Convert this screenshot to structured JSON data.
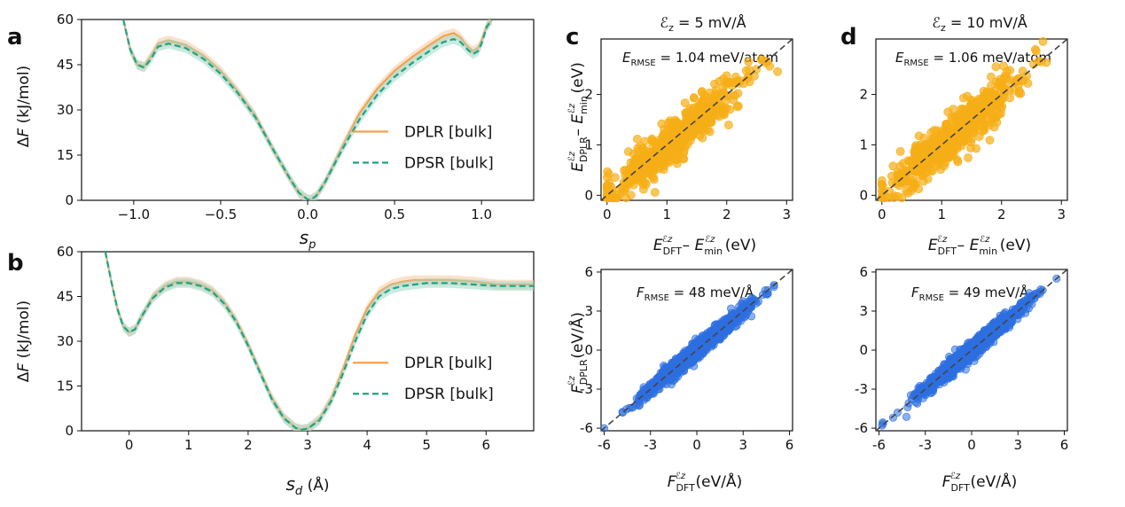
{
  "panel_labels": {
    "a": "a",
    "b": "b",
    "c": "c",
    "d": "d"
  },
  "colors": {
    "dplr": "#f5a04a",
    "dpsr": "#1fa385",
    "dplr_band": "#f7c9a0",
    "dpsr_band": "#9fd8c8",
    "energy": "#f6ae17",
    "force": "#2e6fe0",
    "diag": "#444444"
  },
  "titles": {
    "c": {
      "symbol": "ℰ",
      "sub": "z",
      "rest": " = 5 mV/Å"
    },
    "d": {
      "symbol": "ℰ",
      "sub": "z",
      "rest": " = 10 mV/Å"
    }
  },
  "annotations": {
    "c_energy": {
      "main": "E",
      "sub": "RMSE",
      "rest": " = 1.04 meV/atom"
    },
    "d_energy": {
      "main": "E",
      "sub": "RMSE",
      "rest": " = 1.06 meV/atom"
    },
    "c_force": {
      "main": "F",
      "sub": "RMSE",
      "rest": " = 48 meV/Å"
    },
    "d_force": {
      "main": "F",
      "sub": "RMSE",
      "rest": " = 49 meV/Å"
    }
  },
  "axis_labels": {
    "a_y": {
      "pre": "Δ",
      "italic": "F",
      "post": " (kJ/mol)"
    },
    "a_x": {
      "italic": "s",
      "sub": "p",
      "post": ""
    },
    "b_y": {
      "pre": "Δ",
      "italic": "F",
      "post": " (kJ/mol)"
    },
    "b_x": {
      "italic": "s",
      "sub": "d",
      "post": " (Å)"
    },
    "energy_x": {
      "main": "E",
      "sub": "DFT",
      "sup": "ℰz",
      "mid": " – ",
      "main2": "E",
      "sub2": "min",
      "sup2": "ℰz",
      "unit": " (eV)"
    },
    "energy_y": {
      "main": "E",
      "sub": "DPLR",
      "sup": "ℰz",
      "mid": " – ",
      "main2": "E",
      "sub2": "min",
      "sup2": "ℰz",
      "unit": " (eV)"
    },
    "force_x": {
      "main": "F",
      "sub": "DFT",
      "sup": "ℰz",
      "unit": " (eV/Å)"
    },
    "force_y": {
      "main": "F",
      "sub": "DPLR",
      "sup": "ℰz",
      "unit": " (eV/Å)"
    }
  },
  "chart_data": [
    {
      "id": "a",
      "type": "line",
      "xlabel": "s_p",
      "ylabel": "ΔF (kJ/mol)",
      "xlim": [
        -1.3,
        1.3
      ],
      "ylim": [
        0,
        60
      ],
      "xticks": [
        -1.0,
        -0.5,
        0.0,
        0.5,
        1.0
      ],
      "xtick_labels": [
        "−1.0",
        "−0.5",
        "0.0",
        "0.5",
        "1.0"
      ],
      "yticks": [
        0,
        15,
        30,
        45,
        60
      ],
      "legend_position": "right",
      "series": [
        {
          "name": "DPLR [bulk]",
          "style": "solid",
          "x": [
            -1.06,
            -1.02,
            -0.98,
            -0.94,
            -0.9,
            -0.86,
            -0.8,
            -0.7,
            -0.6,
            -0.5,
            -0.4,
            -0.3,
            -0.2,
            -0.1,
            -0.05,
            0.0,
            0.02,
            0.05,
            0.1,
            0.2,
            0.3,
            0.4,
            0.5,
            0.6,
            0.7,
            0.78,
            0.84,
            0.88,
            0.92,
            0.95,
            0.98,
            1.0,
            1.03,
            1.06
          ],
          "y": [
            60,
            50,
            45,
            44.5,
            48,
            52,
            53,
            51.5,
            48,
            43,
            36,
            28,
            17,
            7,
            2.5,
            0.3,
            0.2,
            1.5,
            6,
            18,
            29,
            37,
            43,
            47.5,
            51.5,
            54.5,
            55.5,
            54,
            51,
            49.5,
            50.5,
            53,
            58,
            60
          ]
        },
        {
          "name": "DPSR [bulk]",
          "style": "dashed",
          "x": [
            -1.06,
            -1.02,
            -0.98,
            -0.94,
            -0.9,
            -0.86,
            -0.8,
            -0.7,
            -0.6,
            -0.5,
            -0.4,
            -0.3,
            -0.2,
            -0.1,
            -0.05,
            0.0,
            0.02,
            0.05,
            0.1,
            0.2,
            0.3,
            0.4,
            0.5,
            0.6,
            0.7,
            0.78,
            0.84,
            0.88,
            0.92,
            0.95,
            0.98,
            1.0,
            1.03,
            1.06
          ],
          "y": [
            60,
            50,
            45,
            44,
            47,
            51,
            52,
            50.5,
            47,
            42,
            35.5,
            27.5,
            17,
            7,
            2.5,
            0.3,
            0.2,
            1.5,
            6,
            17,
            27,
            35,
            41,
            45.5,
            49.5,
            52.5,
            53.5,
            52.5,
            50,
            48.5,
            49.5,
            52,
            57.5,
            60
          ]
        }
      ]
    },
    {
      "id": "b",
      "type": "line",
      "xlabel": "s_d (Å)",
      "ylabel": "ΔF (kJ/mol)",
      "xlim": [
        -0.8,
        6.8
      ],
      "ylim": [
        0,
        60
      ],
      "xticks": [
        0,
        1,
        2,
        3,
        4,
        5,
        6
      ],
      "yticks": [
        0,
        15,
        30,
        45,
        60
      ],
      "legend_position": "right",
      "series": [
        {
          "name": "DPLR [bulk]",
          "style": "solid",
          "x": [
            -0.4,
            -0.3,
            -0.2,
            -0.1,
            0.0,
            0.1,
            0.2,
            0.4,
            0.6,
            0.8,
            1.0,
            1.2,
            1.4,
            1.6,
            1.8,
            2.0,
            2.2,
            2.4,
            2.6,
            2.8,
            2.9,
            3.0,
            3.2,
            3.4,
            3.6,
            3.8,
            4.0,
            4.2,
            4.4,
            4.6,
            4.8,
            5.0,
            5.4,
            5.8,
            6.2,
            6.8
          ],
          "y": [
            60,
            50,
            41,
            35,
            33,
            34,
            38,
            45,
            48.5,
            50,
            50,
            49,
            47,
            43,
            37,
            29,
            20,
            11,
            4.5,
            1.0,
            0.4,
            0.8,
            4,
            11,
            21,
            32,
            41,
            46.5,
            49,
            50,
            50.5,
            50.5,
            50.5,
            50,
            49,
            49
          ]
        },
        {
          "name": "DPSR [bulk]",
          "style": "dashed",
          "x": [
            -0.4,
            -0.3,
            -0.2,
            -0.1,
            0.0,
            0.1,
            0.2,
            0.4,
            0.6,
            0.8,
            1.0,
            1.2,
            1.4,
            1.6,
            1.8,
            2.0,
            2.2,
            2.4,
            2.6,
            2.8,
            2.9,
            3.0,
            3.2,
            3.4,
            3.6,
            3.8,
            4.0,
            4.2,
            4.4,
            4.6,
            4.8,
            5.0,
            5.4,
            5.8,
            6.2,
            6.8
          ],
          "y": [
            60,
            50,
            41,
            35,
            33,
            34,
            38,
            44.5,
            48,
            49.5,
            49.5,
            48.5,
            46.5,
            42.5,
            36.5,
            28.5,
            19.5,
            10.5,
            4.2,
            0.9,
            0.4,
            0.7,
            3.5,
            10,
            19.5,
            30,
            39,
            45,
            47.5,
            48.5,
            49,
            49.5,
            49.5,
            49,
            48.5,
            48.5
          ]
        }
      ]
    },
    {
      "id": "c_energy",
      "type": "scatter",
      "title": "ℰz = 5 mV/Å",
      "xlabel": "E_DFT^ℰz – E_min^ℰz (eV)",
      "ylabel": "E_DPLR^ℰz – E_min^ℰz (eV)",
      "xlim": [
        -0.1,
        3.1
      ],
      "ylim": [
        -0.1,
        3.1
      ],
      "xticks": [
        0,
        1,
        2,
        3
      ],
      "yticks": [
        0,
        1,
        2
      ],
      "diagonal": true,
      "trend": {
        "x_range": [
          0.0,
          3.0
        ],
        "spread": 0.22
      },
      "point_count": 600
    },
    {
      "id": "d_energy",
      "type": "scatter",
      "title": "ℰz = 10 mV/Å",
      "xlabel": "E_DFT^ℰz – E_min^ℰz (eV)",
      "ylabel": "",
      "xlim": [
        -0.1,
        3.1
      ],
      "ylim": [
        -0.1,
        3.1
      ],
      "xticks": [
        0,
        1,
        2,
        3
      ],
      "yticks": [
        0,
        1,
        2
      ],
      "diagonal": true,
      "trend": {
        "x_range": [
          0.0,
          3.0
        ],
        "spread": 0.22
      },
      "point_count": 600
    },
    {
      "id": "c_force",
      "type": "scatter",
      "xlabel": "F_DFT^ℰz (eV/Å)",
      "ylabel": "F_DPLR^ℰz (eV/Å)",
      "xlim": [
        -6.2,
        6.2
      ],
      "ylim": [
        -6.2,
        6.2
      ],
      "xticks": [
        -6,
        -3,
        0,
        3,
        6
      ],
      "yticks": [
        -6,
        -3,
        0,
        3,
        6
      ],
      "diagonal": true,
      "trend": {
        "x_range": [
          -6.0,
          5.0
        ],
        "spread": 0.3
      },
      "point_count": 1500
    },
    {
      "id": "d_force",
      "type": "scatter",
      "xlabel": "F_DFT^ℰz (eV/Å)",
      "ylabel": "",
      "xlim": [
        -6.2,
        6.2
      ],
      "ylim": [
        -6.2,
        6.2
      ],
      "xticks": [
        -6,
        -3,
        0,
        3,
        6
      ],
      "yticks": [
        -6,
        -3,
        0,
        3,
        6
      ],
      "diagonal": true,
      "trend": {
        "x_range": [
          -5.8,
          5.5
        ],
        "spread": 0.3
      },
      "point_count": 1500
    }
  ]
}
